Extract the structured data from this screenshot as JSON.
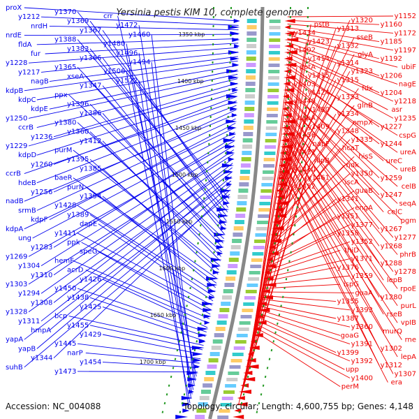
{
  "title": "Yersinia pestis KIM 10, complete genome",
  "accession": "Accession: NC_004088",
  "topology": "Topology: circular; Length: 4,600,755 bp; Genes: 4,148",
  "colors": {
    "forward": "#0000ee",
    "reverse": "#ee0000",
    "backbone": "#888888",
    "tick": "#229922"
  },
  "kbp_ticks": [
    "1350 kbp",
    "1400 kbp",
    "1450 kbp",
    "1500 kbp",
    "1550 kbp",
    "1600 kbp",
    "1650 kbp",
    "1700 kbp"
  ],
  "left_labels": [
    "proX",
    "y1212",
    "nrdH",
    "nrdE",
    "fldA",
    "fur",
    "y1228",
    "y1217",
    "nagB",
    "kdpB",
    "kdpC",
    "kdpE",
    "y1250",
    "ccrB",
    "y1236",
    "y1229",
    "kdpD",
    "y1260",
    "ccrB",
    "hdeB",
    "y1256",
    "nadB",
    "srmB",
    "kdpF",
    "kdpA",
    "ung",
    "y1283",
    "y1269",
    "y1304",
    "y1310",
    "y1303",
    "y1294",
    "y1308",
    "y1328",
    "y1311",
    "hmpA",
    "yapA",
    "yapB",
    "y1344",
    "suhB",
    "y1370",
    "y1369",
    "y1367",
    "y1388",
    "y1383",
    "y1366",
    "y1365",
    "xseA",
    "y1347",
    "ppx",
    "y1396",
    "y1386",
    "y1380",
    "y1360",
    "y1412",
    "purM",
    "y1395",
    "y1385",
    "baeR",
    "purN",
    "y1394",
    "y1428",
    "y1389",
    "dapE",
    "y1411",
    "ppk",
    "speG",
    "hemF",
    "acrD",
    "y1426",
    "y1450",
    "y1438",
    "y1425",
    "bcp",
    "y1455",
    "y1429",
    "y1445",
    "narP",
    "y1454",
    "y1473",
    "crr",
    "y1472",
    "y1460",
    "y1480",
    "y1496",
    "y1494",
    "y1506",
    "y1522"
  ],
  "right_labels": [
    "y1152",
    "y1160",
    "y1172",
    "y1185",
    "y1197",
    "y1192",
    "ubiF",
    "y1206",
    "nagE",
    "y1204",
    "y1218",
    "asr",
    "y1235",
    "y1227",
    "cspG",
    "y1244",
    "ureA",
    "ureC",
    "ureB",
    "y1259",
    "celB",
    "y1247",
    "seqA",
    "celC",
    "pgm",
    "y1267",
    "y1277",
    "y1268",
    "phrB",
    "y1288",
    "y1278",
    "lepB",
    "rpoE",
    "y1280",
    "purL",
    "rseB",
    "vpIB",
    "murQ",
    "rne",
    "y1302",
    "lepA",
    "y1312",
    "y1307",
    "era",
    "y1320",
    "y1313",
    "sseB",
    "y1332",
    "glyA",
    "y1314",
    "y1323",
    "y1315",
    "fdx",
    "y1333",
    "glnB",
    "y1334",
    "ompX",
    "y1348",
    "y1335",
    "hcaT",
    "hisS",
    "ndk",
    "y1350",
    "iscA",
    "guaB",
    "y1341",
    "engA",
    "y1351",
    "y1377",
    "y1358",
    "y1352",
    "thiD",
    "y1371",
    "y1376",
    "y1359",
    "ispG",
    "guaA",
    "y1355",
    "y1393",
    "y1387",
    "y1360",
    "goaG",
    "y1391",
    "y1399",
    "y1392",
    "upp",
    "y1400",
    "perM",
    "pstB",
    "y1434",
    "y1423",
    "y1402",
    "y1414",
    "potA",
    "y1415",
    "y1403",
    "y1424",
    "y1440",
    "y1430",
    "dapA",
    "y1409",
    "y1456",
    "napF",
    "y1431",
    "nlpB",
    "y1410",
    "y1461",
    "y1452"
  ]
}
